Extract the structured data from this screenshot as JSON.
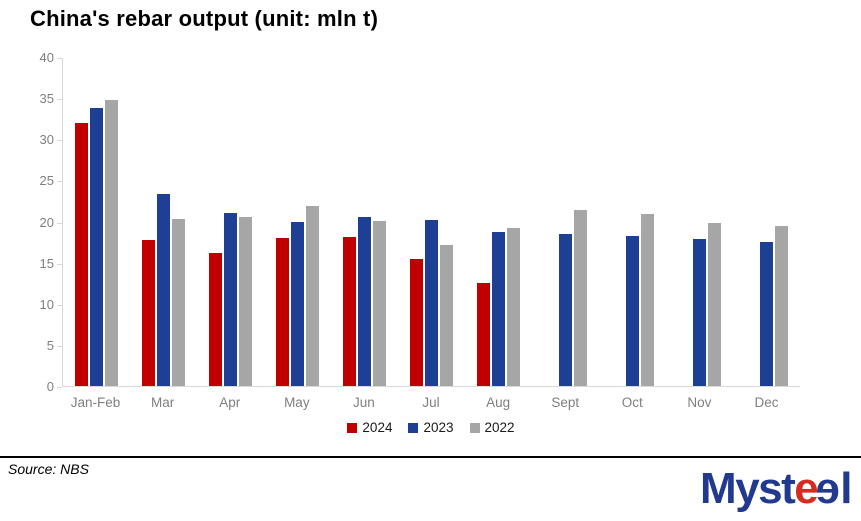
{
  "title": "China's rebar output (unit: mln t)",
  "source": "Source: NBS",
  "logo": {
    "part1": "Myst",
    "part2": "e",
    "part3": "e",
    "part4": "l"
  },
  "colors": {
    "series_2024": "#c00000",
    "series_2023": "#1d3f94",
    "series_2022": "#a6a6a6",
    "axis_line": "#d9d9d9",
    "tick_label": "#7f7f7f",
    "legend_text": "#1a1a1a",
    "logo_blue": "#213a8f",
    "logo_red": "#d62b1f"
  },
  "chart_data": {
    "type": "bar",
    "title": "China's rebar output (unit: mln t)",
    "xlabel": "",
    "ylabel": "",
    "categories": [
      "Jan-Feb",
      "Mar",
      "Apr",
      "May",
      "Jun",
      "Jul",
      "Aug",
      "Sept",
      "Oct",
      "Nov",
      "Dec"
    ],
    "series": [
      {
        "name": "2024",
        "color": "#c00000",
        "values": [
          32.0,
          17.7,
          16.2,
          18.0,
          18.1,
          15.5,
          12.5,
          null,
          null,
          null,
          null
        ]
      },
      {
        "name": "2023",
        "color": "#1d3f94",
        "values": [
          33.8,
          23.3,
          21.0,
          19.9,
          20.5,
          20.2,
          18.7,
          18.5,
          18.2,
          17.9,
          17.5
        ]
      },
      {
        "name": "2022",
        "color": "#a6a6a6",
        "values": [
          34.8,
          20.3,
          20.5,
          21.9,
          20.1,
          17.1,
          19.2,
          21.4,
          20.9,
          19.8,
          19.4
        ]
      }
    ],
    "ylim": [
      0,
      40
    ],
    "yticks": [
      0,
      5,
      10,
      15,
      20,
      25,
      30,
      35,
      40
    ],
    "grid": false,
    "legend_position": "bottom"
  }
}
